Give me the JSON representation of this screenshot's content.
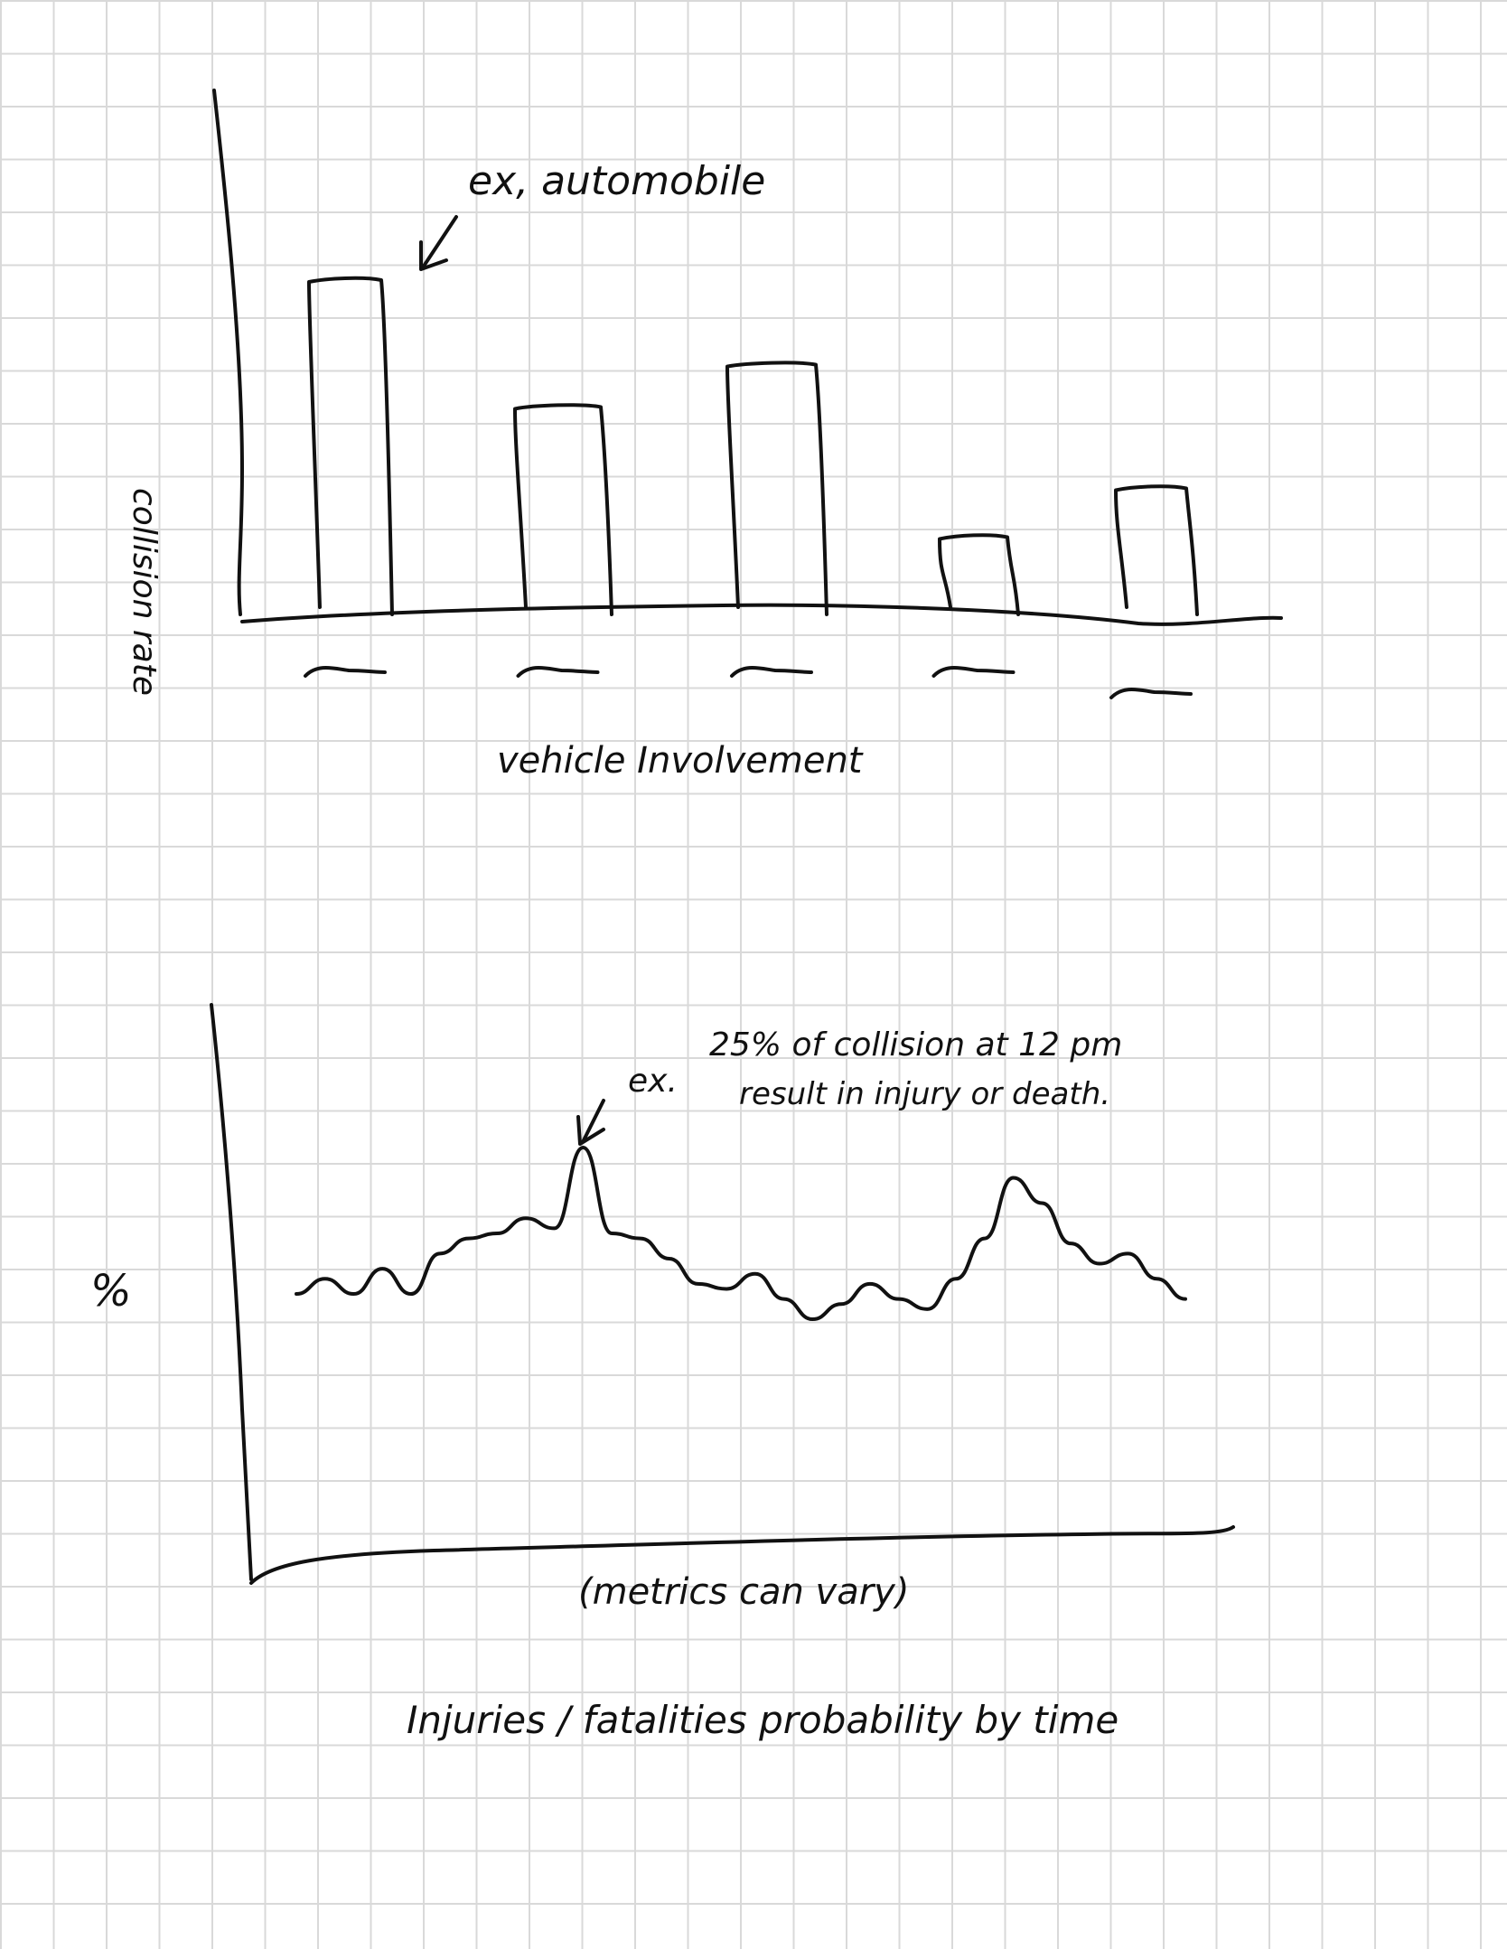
{
  "chart_data": [
    {
      "type": "bar",
      "title": "",
      "xlabel": "vehicle Involvement",
      "ylabel": "collision rate",
      "categories": [
        "~",
        "~",
        "~",
        "~",
        "~"
      ],
      "values": [
        100,
        61,
        74,
        21,
        36
      ],
      "annotations": [
        {
          "text": "ex, automobile",
          "target_category_index": 0
        }
      ],
      "grid": false
    },
    {
      "type": "line",
      "title": "Injuries / fatalities probability by time",
      "xlabel": "(metrics can vary)",
      "ylabel": "%",
      "x": [
        0,
        1,
        2,
        3,
        4,
        5,
        6,
        7,
        8,
        9,
        10,
        11,
        12,
        13,
        14,
        15,
        16,
        17,
        18,
        19,
        20,
        21,
        22,
        23,
        24,
        25,
        26,
        27,
        28,
        29,
        30,
        31
      ],
      "values": [
        55,
        58,
        55,
        60,
        55,
        63,
        66,
        67,
        70,
        68,
        84,
        67,
        66,
        62,
        57,
        56,
        59,
        54,
        50,
        53,
        57,
        54,
        52,
        58,
        66,
        78,
        73,
        65,
        61,
        63,
        58,
        54
      ],
      "annotations": [
        {
          "text_line1": "25% of collision at 12 pm",
          "text_line2": "result in injury or death.",
          "prefix": "ex."
        }
      ],
      "grid": false
    }
  ]
}
